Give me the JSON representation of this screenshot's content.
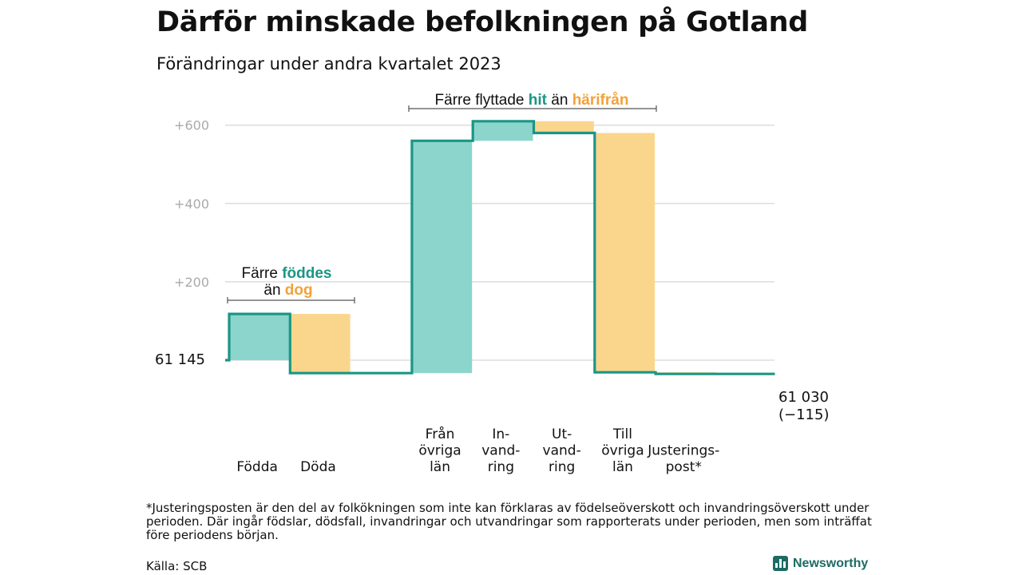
{
  "title": "Därför minskade befolkningen på Gotland",
  "subtitle": "Förändringar under andra kvartalet 2023",
  "chart_data": {
    "type": "waterfall",
    "categories": [
      "Födda",
      "Döda",
      "",
      "Från övriga län",
      "In-vand-ring",
      "Ut-vand-ring",
      "Till övriga län",
      "Justerings-post*"
    ],
    "category_lines": [
      [
        "Födda"
      ],
      [
        "Döda"
      ],
      [],
      [
        "Från",
        "övriga",
        "län"
      ],
      [
        "In-",
        "vand-",
        "ring"
      ],
      [
        "Ut-",
        "vand-",
        "ring"
      ],
      [
        "Till",
        "övriga",
        "län"
      ],
      [
        "Justerings-",
        "post*"
      ]
    ],
    "baseline": 61145,
    "start_label": "61  145",
    "changes": [
      118,
      -151,
      0,
      593,
      50,
      -30,
      -611,
      -4
    ],
    "kind": [
      "gain",
      "loss",
      "none",
      "gain",
      "gain",
      "loss",
      "loss",
      "loss"
    ],
    "end_label": "61 030",
    "end_change_label": "(−115)",
    "yticks": [
      200,
      400,
      600
    ],
    "ytick_labels": [
      "+200",
      "+400",
      "+600"
    ],
    "ylim": [
      -140,
      660
    ],
    "grid": true,
    "colors": {
      "gain": "#8cd5cc",
      "loss": "#fad68c",
      "line": "#1b9685",
      "grid": "#dddddd",
      "tick": "#aaaaaa",
      "text_teal": "#1b9685",
      "text_orange": "#f2a23a"
    },
    "annotations": {
      "births": {
        "line1_prefix": "Färre",
        "line1_hl": "föddes",
        "line2_prefix": "än",
        "line2_hl": "dog"
      },
      "migration": {
        "prefix": "Färre flyttade",
        "hl1": "hit",
        "middle": "än",
        "hl2": "härifrån"
      }
    }
  },
  "footnote": "*Justeringsposten är den del av folkökningen som inte kan förklaras av födelseöverskott och invandringsöverskott under perioden. Där ingår födslar, dödsfall, invandringar och utvandringar som rapporterats under perioden, men som inträffat före periodens början.",
  "source": "Källa: SCB",
  "brand": "Newsworthy"
}
